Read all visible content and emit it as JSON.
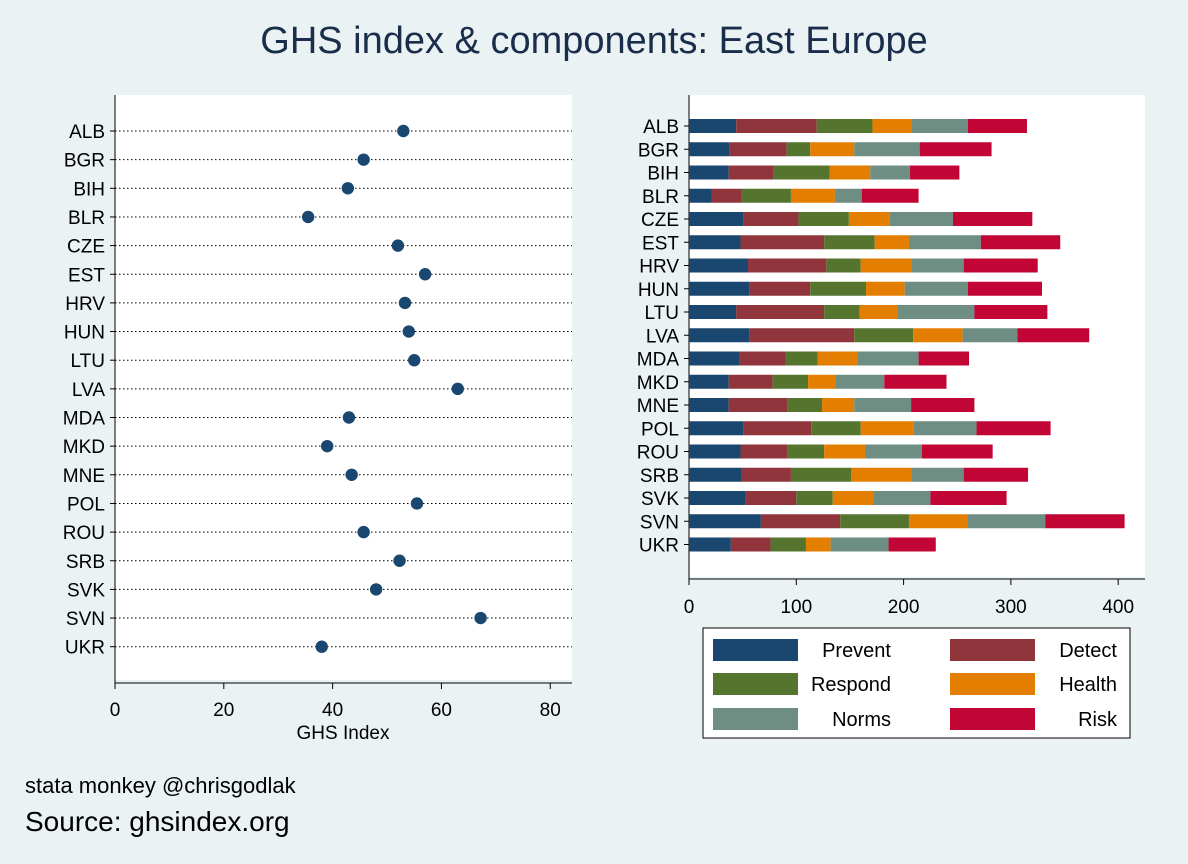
{
  "title": "GHS index & components: East Europe",
  "credit": "stata monkey @chrisgodlak",
  "source": "Source: ghsindex.org",
  "chart_data": [
    {
      "type": "scatter",
      "subtype": "dot-plot",
      "xlabel": "GHS Index",
      "xlim": [
        0,
        84
      ],
      "xticks": [
        0,
        20,
        40,
        60,
        80
      ],
      "grid": "dotted horizontal guides",
      "marker_color": "#1a476f",
      "categories": [
        "ALB",
        "BGR",
        "BIH",
        "BLR",
        "CZE",
        "EST",
        "HRV",
        "HUN",
        "LTU",
        "LVA",
        "MDA",
        "MKD",
        "MNE",
        "POL",
        "ROU",
        "SRB",
        "SVK",
        "SVN",
        "UKR"
      ],
      "values": [
        53.0,
        45.7,
        42.8,
        35.5,
        52.0,
        57.0,
        53.3,
        54.0,
        55.0,
        63.0,
        43.0,
        39.0,
        43.5,
        55.5,
        45.7,
        52.3,
        48.0,
        67.2,
        38.0
      ]
    },
    {
      "type": "bar",
      "orientation": "horizontal",
      "stacked": true,
      "xlim": [
        0,
        425
      ],
      "xticks": [
        0,
        100,
        200,
        300,
        400
      ],
      "legend_position": "bottom",
      "categories": [
        "ALB",
        "BGR",
        "BIH",
        "BLR",
        "CZE",
        "EST",
        "HRV",
        "HUN",
        "LTU",
        "LVA",
        "MDA",
        "MKD",
        "MNE",
        "POL",
        "ROU",
        "SRB",
        "SVK",
        "SVN",
        "UKR"
      ],
      "series": [
        {
          "name": "Prevent",
          "color": "#1a476f",
          "values": [
            44,
            38,
            37,
            21,
            51,
            48,
            55,
            56,
            44,
            56,
            47,
            37,
            37,
            51,
            48,
            49,
            53,
            67,
            39
          ]
        },
        {
          "name": "Detect",
          "color": "#90353b",
          "values": [
            75,
            53,
            42,
            28,
            51,
            78,
            73,
            57,
            82,
            98,
            43,
            41,
            55,
            63,
            44,
            46,
            47,
            74,
            37
          ]
        },
        {
          "name": "Respond",
          "color": "#55752f",
          "values": [
            52,
            22,
            52,
            46,
            47,
            47,
            32,
            52,
            33,
            55,
            30,
            33,
            32,
            46,
            34,
            56,
            34,
            64,
            33
          ]
        },
        {
          "name": "Health",
          "color": "#e37e00",
          "values": [
            36,
            41,
            38,
            41,
            38,
            32,
            47,
            36,
            35,
            46,
            37,
            26,
            30,
            49,
            38,
            56,
            38,
            55,
            23
          ]
        },
        {
          "name": "Norms",
          "color": "#6e8e84",
          "values": [
            53,
            61,
            37,
            25,
            59,
            67,
            49,
            59,
            72,
            51,
            57,
            45,
            53,
            59,
            53,
            49,
            53,
            72,
            54
          ]
        },
        {
          "name": "Risk",
          "color": "#c10534",
          "values": [
            55,
            67,
            46,
            53,
            74,
            74,
            69,
            69,
            68,
            67,
            47,
            58,
            59,
            69,
            66,
            60,
            71,
            74,
            44
          ]
        }
      ]
    }
  ]
}
